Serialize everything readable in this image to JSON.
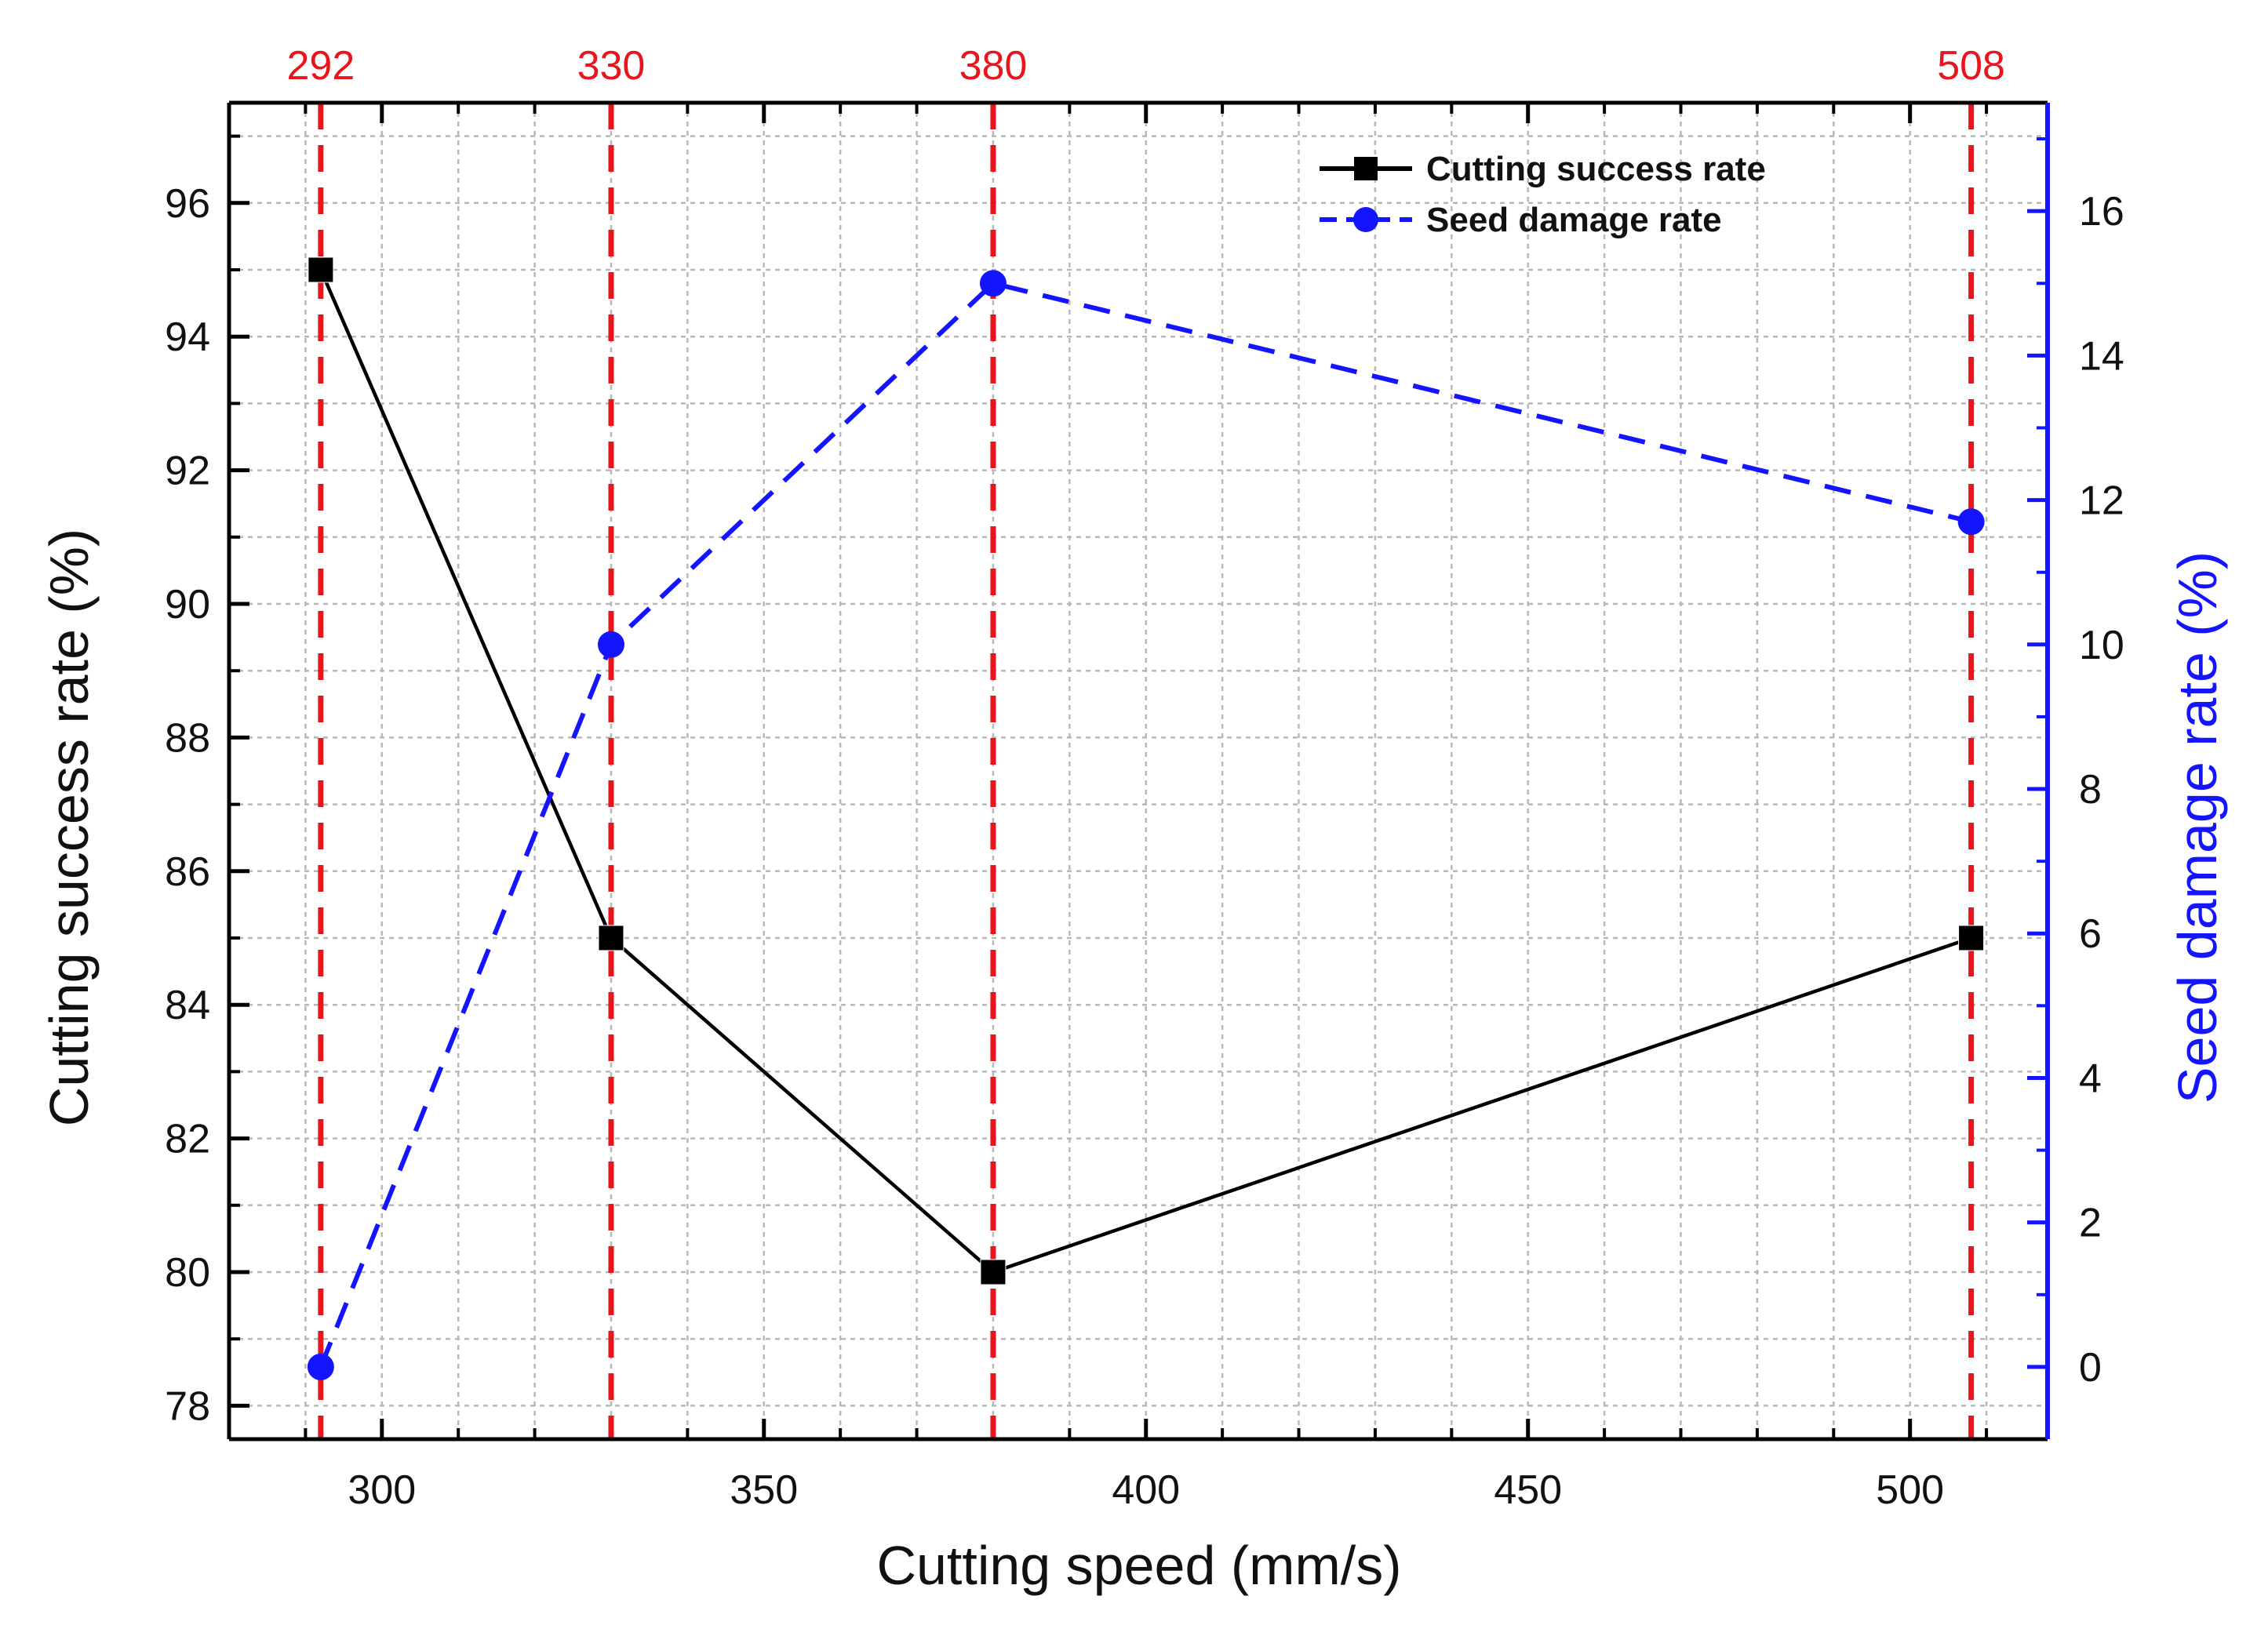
{
  "chart_data": {
    "type": "line",
    "xlabel": "Cutting speed (mm/s)",
    "ylabel_left": "Cutting success rate (%)",
    "ylabel_right": "Seed damage rate (%)",
    "xlim": [
      280,
      518
    ],
    "ylim_left": [
      77.5,
      97.5
    ],
    "ylim_right": [
      -1,
      17.5
    ],
    "x_ticks": [
      300,
      350,
      400,
      450,
      500
    ],
    "x_tick_labels": [
      "300",
      "350",
      "400",
      "450",
      "500"
    ],
    "x_minor_step": 10,
    "y_left_ticks": [
      78,
      80,
      82,
      84,
      86,
      88,
      90,
      92,
      94,
      96
    ],
    "y_left_tick_labels": [
      "78",
      "80",
      "82",
      "84",
      "86",
      "88",
      "90",
      "92",
      "94",
      "96"
    ],
    "y_right_ticks": [
      0,
      2,
      4,
      6,
      8,
      10,
      12,
      14,
      16
    ],
    "y_right_tick_labels": [
      "0",
      "2",
      "4",
      "6",
      "8",
      "10",
      "12",
      "14",
      "16"
    ],
    "top_markers": [
      292,
      330,
      380,
      508
    ],
    "top_marker_labels": [
      "292",
      "330",
      "380",
      "508"
    ],
    "series": [
      {
        "name": "Cutting success rate",
        "axis": "left",
        "x": [
          292,
          330,
          380,
          508
        ],
        "y": [
          95,
          85,
          80,
          85
        ],
        "color": "#000000",
        "line": "solid",
        "marker": "square"
      },
      {
        "name": "Seed damage rate",
        "axis": "right",
        "x": [
          292,
          330,
          380,
          508
        ],
        "y": [
          0,
          10,
          15,
          11.7
        ],
        "color": "#1414ff",
        "line": "dashed",
        "marker": "circle"
      }
    ],
    "legend_position": "top-right",
    "grid": true,
    "colors": {
      "axis": "#000000",
      "right_axis": "#1414ff",
      "marker_lines": "#e8161c",
      "grid": "#b8b8b8"
    }
  }
}
